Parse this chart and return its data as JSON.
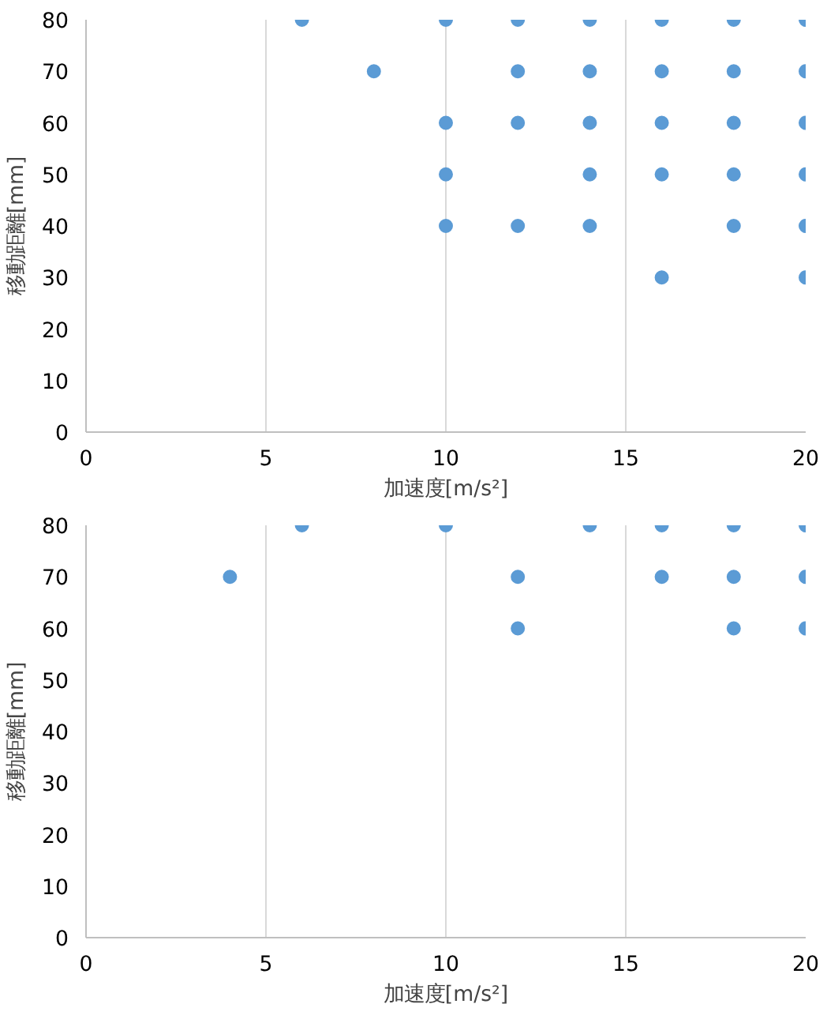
{
  "chart_data": [
    {
      "type": "scatter",
      "xlabel": "加速度[m/s²]",
      "ylabel": "移動距離[mm]",
      "marker": "circle",
      "grid": "x",
      "xlim": [
        0,
        20
      ],
      "ylim": [
        0,
        80
      ],
      "xticks": [
        0,
        5,
        10,
        15,
        20
      ],
      "yticks": [
        0,
        10,
        20,
        30,
        40,
        50,
        60,
        70,
        80
      ],
      "series": [
        {
          "color": "#5b9bd5",
          "x": [
            6,
            10,
            12,
            14,
            16,
            18,
            20,
            8,
            12,
            14,
            16,
            18,
            20,
            10,
            12,
            14,
            16,
            18,
            20,
            10,
            14,
            16,
            18,
            20,
            10,
            12,
            14,
            18,
            20,
            16,
            20
          ],
          "values": [
            80,
            80,
            80,
            80,
            80,
            80,
            80,
            70,
            70,
            70,
            70,
            70,
            70,
            60,
            60,
            60,
            60,
            60,
            60,
            50,
            50,
            50,
            50,
            50,
            40,
            40,
            40,
            40,
            40,
            30,
            30
          ]
        }
      ]
    },
    {
      "type": "scatter",
      "xlabel": "加速度[m/s²]",
      "ylabel": "移動距離[mm]",
      "marker": "circle",
      "grid": "x",
      "xlim": [
        0,
        20
      ],
      "ylim": [
        0,
        80
      ],
      "xticks": [
        0,
        5,
        10,
        15,
        20
      ],
      "yticks": [
        0,
        10,
        20,
        30,
        40,
        50,
        60,
        70,
        80
      ],
      "series": [
        {
          "color": "#5b9bd5",
          "x": [
            6,
            10,
            14,
            16,
            18,
            20,
            4,
            12,
            16,
            18,
            20,
            12,
            18,
            20
          ],
          "values": [
            80,
            80,
            80,
            80,
            80,
            80,
            70,
            70,
            70,
            70,
            70,
            60,
            60,
            60
          ]
        }
      ]
    }
  ]
}
